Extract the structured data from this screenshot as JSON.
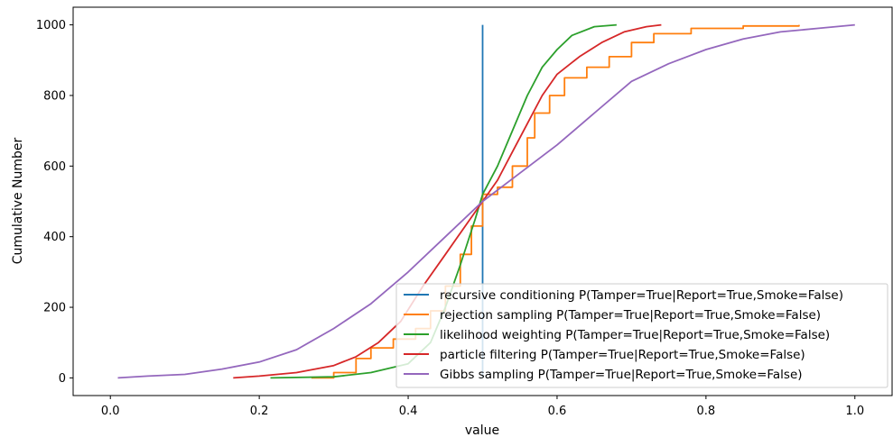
{
  "chart_data": {
    "type": "line",
    "title": "",
    "xlabel": "value",
    "ylabel": "Cumulative Number",
    "xlim": [
      -0.05,
      1.05
    ],
    "ylim": [
      -50,
      1050
    ],
    "xticks": [
      0.0,
      0.2,
      0.4,
      0.6,
      0.8,
      1.0
    ],
    "xtick_labels": [
      "0.0",
      "0.2",
      "0.4",
      "0.6",
      "0.8",
      "1.0"
    ],
    "yticks": [
      0,
      200,
      400,
      600,
      800,
      1000
    ],
    "ytick_labels": [
      "0",
      "200",
      "400",
      "600",
      "800",
      "1000"
    ],
    "grid": false,
    "legend_position": "lower-right",
    "series": [
      {
        "name": "recursive conditioning P(Tamper=True|Report=True,Smoke=False)",
        "color": "#1f77b4",
        "points": [
          [
            0.5,
            0
          ],
          [
            0.5,
            1000
          ]
        ]
      },
      {
        "name": "rejection sampling P(Tamper=True|Report=True,Smoke=False)",
        "color": "#ff7f0e",
        "step": true,
        "points": [
          [
            0.27,
            0
          ],
          [
            0.3,
            15
          ],
          [
            0.33,
            55
          ],
          [
            0.35,
            85
          ],
          [
            0.38,
            110
          ],
          [
            0.41,
            140
          ],
          [
            0.43,
            190
          ],
          [
            0.45,
            260
          ],
          [
            0.47,
            350
          ],
          [
            0.485,
            430
          ],
          [
            0.5,
            430
          ],
          [
            0.5,
            520
          ],
          [
            0.52,
            540
          ],
          [
            0.54,
            600
          ],
          [
            0.56,
            680
          ],
          [
            0.57,
            750
          ],
          [
            0.59,
            800
          ],
          [
            0.61,
            850
          ],
          [
            0.64,
            880
          ],
          [
            0.67,
            910
          ],
          [
            0.7,
            950
          ],
          [
            0.73,
            975
          ],
          [
            0.78,
            990
          ],
          [
            0.85,
            997
          ],
          [
            0.925,
            1000
          ]
        ]
      },
      {
        "name": "likelihood weighting P(Tamper=True|Report=True,Smoke=False)",
        "color": "#2ca02c",
        "points": [
          [
            0.215,
            0
          ],
          [
            0.3,
            3
          ],
          [
            0.35,
            15
          ],
          [
            0.4,
            40
          ],
          [
            0.43,
            100
          ],
          [
            0.45,
            200
          ],
          [
            0.47,
            320
          ],
          [
            0.49,
            450
          ],
          [
            0.5,
            520
          ],
          [
            0.52,
            600
          ],
          [
            0.54,
            700
          ],
          [
            0.56,
            800
          ],
          [
            0.58,
            880
          ],
          [
            0.6,
            930
          ],
          [
            0.62,
            970
          ],
          [
            0.65,
            995
          ],
          [
            0.68,
            1000
          ]
        ]
      },
      {
        "name": "particle filtering P(Tamper=True|Report=True,Smoke=False)",
        "color": "#d62728",
        "points": [
          [
            0.165,
            0
          ],
          [
            0.2,
            5
          ],
          [
            0.25,
            15
          ],
          [
            0.3,
            35
          ],
          [
            0.33,
            60
          ],
          [
            0.36,
            100
          ],
          [
            0.39,
            160
          ],
          [
            0.42,
            260
          ],
          [
            0.45,
            350
          ],
          [
            0.48,
            440
          ],
          [
            0.5,
            500
          ],
          [
            0.52,
            560
          ],
          [
            0.54,
            640
          ],
          [
            0.56,
            720
          ],
          [
            0.58,
            800
          ],
          [
            0.6,
            860
          ],
          [
            0.63,
            910
          ],
          [
            0.66,
            950
          ],
          [
            0.69,
            980
          ],
          [
            0.72,
            995
          ],
          [
            0.74,
            1000
          ]
        ]
      },
      {
        "name": "Gibbs sampling P(Tamper=True|Report=True,Smoke=False)",
        "color": "#9467bd",
        "points": [
          [
            0.01,
            0
          ],
          [
            0.05,
            5
          ],
          [
            0.1,
            10
          ],
          [
            0.15,
            25
          ],
          [
            0.2,
            45
          ],
          [
            0.25,
            80
          ],
          [
            0.3,
            140
          ],
          [
            0.35,
            210
          ],
          [
            0.4,
            300
          ],
          [
            0.45,
            400
          ],
          [
            0.5,
            500
          ],
          [
            0.55,
            580
          ],
          [
            0.6,
            660
          ],
          [
            0.65,
            750
          ],
          [
            0.7,
            840
          ],
          [
            0.75,
            890
          ],
          [
            0.8,
            930
          ],
          [
            0.85,
            960
          ],
          [
            0.9,
            980
          ],
          [
            0.95,
            990
          ],
          [
            1.0,
            1000
          ]
        ]
      }
    ]
  }
}
